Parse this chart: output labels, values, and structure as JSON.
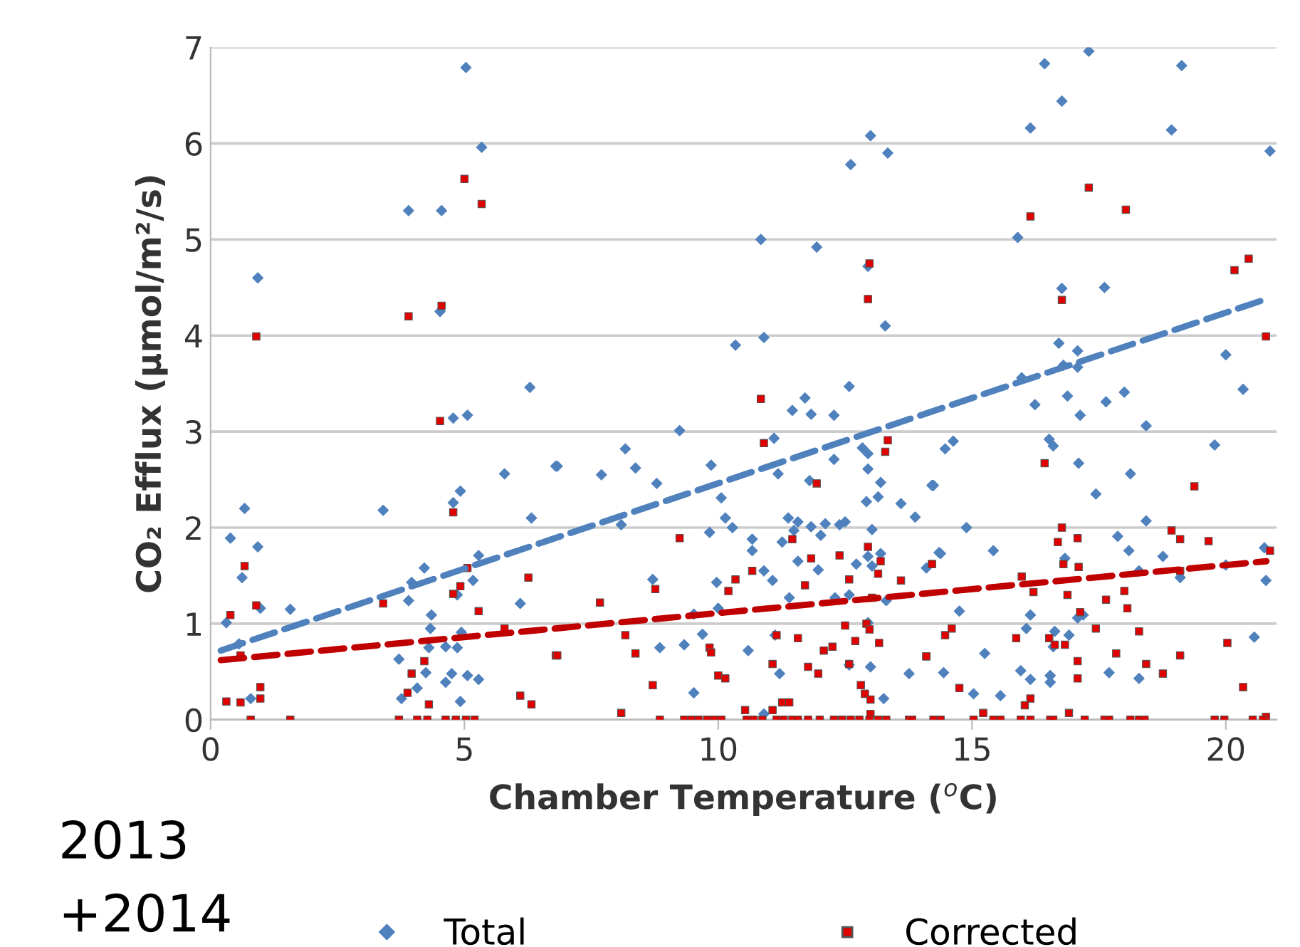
{
  "chart_data": {
    "type": "scatter",
    "xlabel": "Chamber Temperature ($^{o}$C)",
    "ylabel": "CO₂ Efflux (µmol/m²/s)",
    "annotations": [
      "2013\n+2014"
    ],
    "xlim": [
      0,
      21
    ],
    "ylim": [
      0,
      7
    ],
    "xticks": [
      0,
      5,
      10,
      15,
      20
    ],
    "yticks": [
      0,
      1,
      2,
      3,
      4,
      5,
      6,
      7
    ],
    "grid": "y",
    "legend": "bottom",
    "series": [
      {
        "name": "Total",
        "color": "#4f81bd",
        "marker": "diamond",
        "x": [
          5.03,
          5.34,
          3.9,
          4.55,
          0.93,
          4.52,
          6.29,
          4.78,
          5.06,
          5.79,
          6.8,
          3.4,
          0.67,
          4.92,
          4.78,
          0.39,
          0.93,
          6.32,
          0.62,
          4.21,
          3.96,
          5.28,
          5.17,
          3.9,
          4.86,
          0.98,
          1.57,
          6.1,
          0.31,
          4.35,
          4.33,
          4.94,
          0.56,
          4.3,
          4.63,
          4.86,
          3.71,
          4.24,
          4.75,
          5.06,
          5.28,
          4.63,
          4.07,
          3.76,
          0.79,
          4.92,
          13.0,
          12.61,
          13.34,
          10.84,
          11.94,
          12.95,
          13.29,
          10.34,
          10.9,
          12.58,
          11.46,
          11.71,
          11.83,
          12.28,
          9.24,
          11.1,
          6.83,
          8.17,
          7.7,
          8.37,
          9.86,
          8.79,
          12.28,
          12.84,
          12.95,
          12.95,
          11.18,
          11.8,
          13.2,
          10.06,
          12.92,
          13.15,
          13.6,
          13.88,
          14.24,
          8.09,
          10.14,
          10.28,
          9.83,
          11.38,
          11.57,
          11.83,
          12.11,
          12.39,
          12.5,
          13.03,
          11.49,
          12.02,
          10.67,
          10.67,
          11.26,
          11.57,
          11.97,
          12.72,
          12.95,
          13.2,
          13.03,
          10.9,
          11.07,
          9.97,
          8.71,
          14.1,
          14.35,
          11.4,
          12.3,
          12.58,
          13.31,
          10.0,
          9.52,
          11.12,
          9.69,
          9.33,
          8.85,
          10.59,
          12.95,
          11.21,
          12.58,
          13.0,
          13.76,
          9.52,
          13.26,
          10.9,
          17.3,
          16.43,
          19.13,
          16.77,
          16.15,
          18.93,
          20.87,
          15.9,
          16.77,
          17.61,
          16.71,
          17.08,
          20.0,
          15.98,
          16.8,
          17.08,
          20.34,
          16.24,
          16.88,
          17.13,
          17.64,
          18.0,
          18.43,
          16.52,
          16.6,
          14.47,
          14.63,
          19.78,
          17.1,
          18.12,
          14.21,
          17.44,
          14.89,
          18.43,
          17.87,
          14.38,
          15.42,
          18.09,
          18.76,
          20.0,
          20.76,
          20.79,
          19.1,
          18.29,
          16.83,
          14.75,
          16.15,
          16.07,
          17.08,
          17.19,
          16.63,
          16.91,
          16.6,
          20.56,
          15.25,
          14.44,
          15.96,
          16.15,
          16.54,
          16.54,
          17.7,
          18.29,
          15.03,
          15.56
        ],
        "values": [
          6.79,
          5.96,
          5.3,
          5.3,
          4.6,
          4.25,
          3.46,
          3.14,
          3.17,
          2.56,
          2.64,
          2.18,
          2.2,
          2.38,
          2.26,
          1.89,
          1.8,
          2.1,
          1.48,
          1.58,
          1.43,
          1.71,
          1.45,
          1.24,
          1.3,
          1.16,
          1.15,
          1.21,
          1.01,
          1.09,
          0.95,
          0.91,
          0.79,
          0.75,
          0.76,
          0.75,
          0.63,
          0.49,
          0.48,
          0.46,
          0.42,
          0.39,
          0.33,
          0.22,
          0.22,
          0.19,
          6.08,
          5.78,
          5.9,
          5.0,
          4.92,
          4.72,
          4.1,
          3.9,
          3.98,
          3.47,
          3.22,
          3.35,
          3.18,
          3.17,
          3.01,
          2.93,
          2.64,
          2.82,
          2.55,
          2.62,
          2.65,
          2.46,
          2.71,
          2.83,
          2.77,
          2.61,
          2.56,
          2.49,
          2.47,
          2.31,
          2.27,
          2.32,
          2.25,
          2.11,
          2.44,
          2.03,
          2.1,
          2.0,
          1.95,
          2.1,
          2.06,
          2.01,
          2.04,
          2.03,
          2.06,
          1.98,
          1.97,
          1.92,
          1.88,
          1.76,
          1.85,
          1.65,
          1.56,
          1.62,
          1.7,
          1.73,
          1.6,
          1.55,
          1.45,
          1.43,
          1.46,
          1.58,
          1.74,
          1.27,
          1.27,
          1.3,
          1.24,
          1.16,
          1.1,
          0.88,
          0.89,
          0.78,
          0.75,
          0.72,
          1.01,
          0.48,
          0.57,
          0.55,
          0.48,
          0.28,
          0.22,
          0.06,
          6.96,
          6.83,
          6.81,
          6.44,
          6.16,
          6.14,
          5.92,
          5.02,
          4.49,
          4.5,
          3.92,
          3.84,
          3.8,
          3.56,
          3.69,
          3.67,
          3.44,
          3.28,
          3.37,
          3.17,
          3.31,
          3.41,
          3.06,
          2.92,
          2.85,
          2.82,
          2.9,
          2.86,
          2.67,
          2.56,
          2.44,
          2.35,
          2.0,
          2.07,
          1.91,
          1.73,
          1.76,
          1.76,
          1.7,
          1.61,
          1.79,
          1.45,
          1.48,
          1.55,
          1.68,
          1.13,
          1.09,
          0.95,
          1.06,
          1.09,
          0.92,
          0.88,
          0.76,
          0.86,
          0.69,
          0.49,
          0.51,
          0.42,
          0.46,
          0.39,
          0.49,
          0.43,
          0.27,
          0.25
        ]
      },
      {
        "name": "Corrected",
        "color": "#e00000",
        "marker": "square",
        "x": [
          5.0,
          5.34,
          4.55,
          3.9,
          0.9,
          4.52,
          4.78,
          0.67,
          5.06,
          6.26,
          4.92,
          4.78,
          0.9,
          3.4,
          5.28,
          0.39,
          5.79,
          0.59,
          6.8,
          4.21,
          3.96,
          0.98,
          0.98,
          0.31,
          0.59,
          3.88,
          6.1,
          6.32,
          4.3,
          0.79,
          1.57,
          3.71,
          4.07,
          4.27,
          4.63,
          4.83,
          5.03,
          5.2,
          12.98,
          12.95,
          10.84,
          10.9,
          13.34,
          13.29,
          11.94,
          9.24,
          11.46,
          10.67,
          10.34,
          10.2,
          8.76,
          7.67,
          11.83,
          11.71,
          12.39,
          12.58,
          12.95,
          13.2,
          13.15,
          13.6,
          14.21,
          13.03,
          12.5,
          12.92,
          12.98,
          12.7,
          13.17,
          11.15,
          11.57,
          12.25,
          12.08,
          9.83,
          9.86,
          8.17,
          8.37,
          6.83,
          14.1,
          11.07,
          10.0,
          10.14,
          11.77,
          11.97,
          12.58,
          12.81,
          12.89,
          13.0,
          8.71,
          8.09,
          10.53,
          11.26,
          11.4,
          11.07,
          13.0,
          8.85,
          9.33,
          9.47,
          9.61,
          9.78,
          9.92,
          10.06,
          10.56,
          10.7,
          10.87,
          11.15,
          11.29,
          11.46,
          11.57,
          11.77,
          12.0,
          12.28,
          12.44,
          12.61,
          12.78,
          12.98,
          13.15,
          13.31,
          13.76,
          14.24,
          17.3,
          18.03,
          16.15,
          20.45,
          20.17,
          16.77,
          20.79,
          16.43,
          19.38,
          16.77,
          16.69,
          17.08,
          18.93,
          19.1,
          19.66,
          20.87,
          14.21,
          16.8,
          17.1,
          15.98,
          19.1,
          16.21,
          16.88,
          18.0,
          17.64,
          18.06,
          17.13,
          14.6,
          14.47,
          15.87,
          16.52,
          16.63,
          16.83,
          17.44,
          18.29,
          20.03,
          14.1,
          17.84,
          18.43,
          19.1,
          17.08,
          17.08,
          18.76,
          14.75,
          20.34,
          16.15,
          16.04,
          15.22,
          16.91,
          20.79,
          13.82,
          14.38,
          15.03,
          15.42,
          15.56,
          15.96,
          16.15,
          16.54,
          16.6,
          17.22,
          17.61,
          17.7,
          18.12,
          18.29,
          18.4,
          19.78,
          19.97,
          20.53,
          20.73
        ],
        "values": [
          5.63,
          5.37,
          4.31,
          4.2,
          3.99,
          3.11,
          2.16,
          1.6,
          1.58,
          1.48,
          1.39,
          1.31,
          1.19,
          1.21,
          1.13,
          1.09,
          0.95,
          0.67,
          0.67,
          0.61,
          0.48,
          0.34,
          0.22,
          0.19,
          0.18,
          0.28,
          0.25,
          0.16,
          0.16,
          0,
          0,
          0,
          0,
          0,
          0,
          0,
          0,
          0,
          4.75,
          4.38,
          3.34,
          2.88,
          2.91,
          2.79,
          2.46,
          1.89,
          1.88,
          1.55,
          1.46,
          1.34,
          1.36,
          1.22,
          1.68,
          1.4,
          1.71,
          1.46,
          1.8,
          1.65,
          1.52,
          1.45,
          1.62,
          1.27,
          0.98,
          1.0,
          0.94,
          0.82,
          0.8,
          0.88,
          0.85,
          0.76,
          0.72,
          0.75,
          0.7,
          0.88,
          0.69,
          0.67,
          0.66,
          0.58,
          0.46,
          0.43,
          0.55,
          0.48,
          0.58,
          0.36,
          0.27,
          0.21,
          0.36,
          0.07,
          0.1,
          0.18,
          0.18,
          0.1,
          0.06,
          0,
          0,
          0,
          0,
          0,
          0,
          0,
          0,
          0,
          0,
          0,
          0,
          0,
          0,
          0,
          0,
          0,
          0,
          0,
          0,
          0,
          0,
          0,
          0,
          0,
          5.54,
          5.31,
          5.24,
          4.8,
          4.68,
          4.37,
          3.99,
          2.67,
          2.43,
          2.0,
          1.85,
          1.89,
          1.97,
          1.88,
          1.86,
          1.76,
          1.62,
          1.62,
          1.59,
          1.49,
          1.55,
          1.33,
          1.3,
          1.34,
          1.25,
          1.16,
          1.12,
          0.95,
          0.88,
          0.85,
          0.85,
          0.78,
          0.78,
          0.95,
          0.92,
          0.8,
          0.66,
          0.69,
          0.58,
          0.67,
          0.61,
          0.43,
          0.48,
          0.33,
          0.34,
          0.22,
          0.15,
          0.07,
          0.07,
          0.03,
          0,
          0,
          0,
          0,
          0,
          0,
          0,
          0,
          0,
          0,
          0,
          0,
          0,
          0,
          0,
          0,
          0,
          0,
          0
        ]
      },
      {
        "type": "line",
        "color": "#4f81bd",
        "line_style": "dashed",
        "marker": "none",
        "x": [
          0.2,
          20.8
        ],
        "values": [
          0.72,
          4.38
        ]
      },
      {
        "type": "line",
        "color": "#c00000",
        "line_style": "dashed",
        "marker": "none",
        "x": [
          0.2,
          20.8
        ],
        "values": [
          0.62,
          1.65
        ]
      }
    ]
  }
}
